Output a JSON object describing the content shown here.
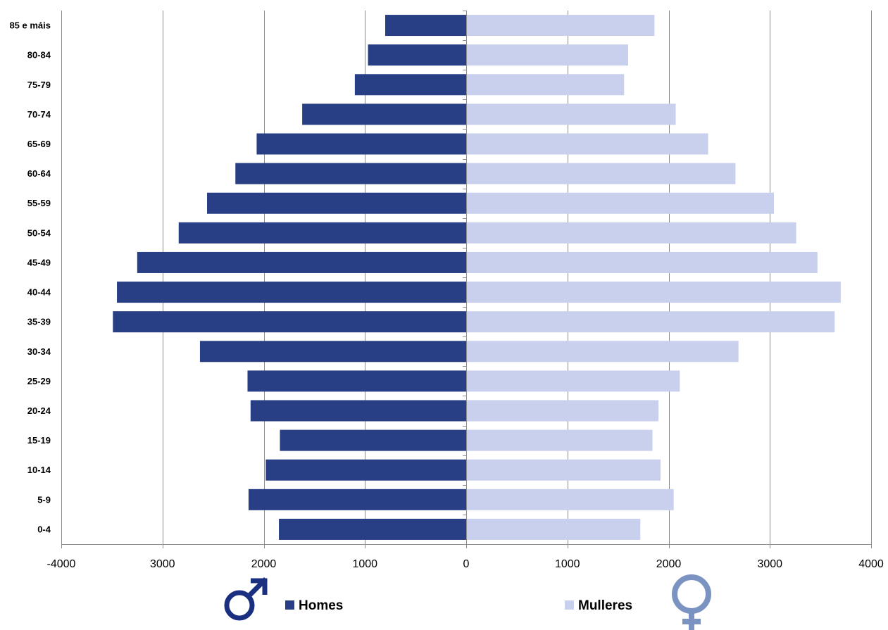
{
  "chart_data": {
    "type": "bar",
    "orientation": "horizontal",
    "subtype": "population-pyramid",
    "categories": [
      "0-4",
      "5-9",
      "10-14",
      "15-19",
      "20-24",
      "25-29",
      "30-34",
      "35-39",
      "40-44",
      "45-49",
      "50-54",
      "55-59",
      "60-64",
      "65-69",
      "70-74",
      "75-79",
      "80-84",
      "85 e máis"
    ],
    "series": [
      {
        "name": "Homes",
        "color": "#283f86",
        "values": [
          -1850,
          -2150,
          -1980,
          -1840,
          -2130,
          -2160,
          -2630,
          -3490,
          -3450,
          -3250,
          -2840,
          -2560,
          -2280,
          -2070,
          -1620,
          -1100,
          -970,
          -800
        ]
      },
      {
        "name": "Mulleres",
        "color": "#c9d0ee",
        "values": [
          1720,
          2050,
          1920,
          1840,
          1900,
          2110,
          2690,
          3640,
          3700,
          3470,
          3260,
          3040,
          2660,
          2390,
          2070,
          1560,
          1600,
          1860
        ]
      }
    ],
    "x_ticks": [
      "-4000",
      "3000",
      "2000",
      "1000",
      "0",
      "1000",
      "2000",
      "3000",
      "4000"
    ],
    "xlim": [
      -4000,
      4000
    ],
    "grid": "vertical",
    "gridline_color": "#8c8c8c",
    "legend_position": "bottom",
    "legend": [
      "Homes",
      "Mulleres"
    ],
    "symbols": {
      "male": {
        "icon": "male-symbol-icon",
        "color": "#1b2f80"
      },
      "female": {
        "icon": "female-symbol-icon",
        "color": "#7b93c0"
      }
    }
  }
}
